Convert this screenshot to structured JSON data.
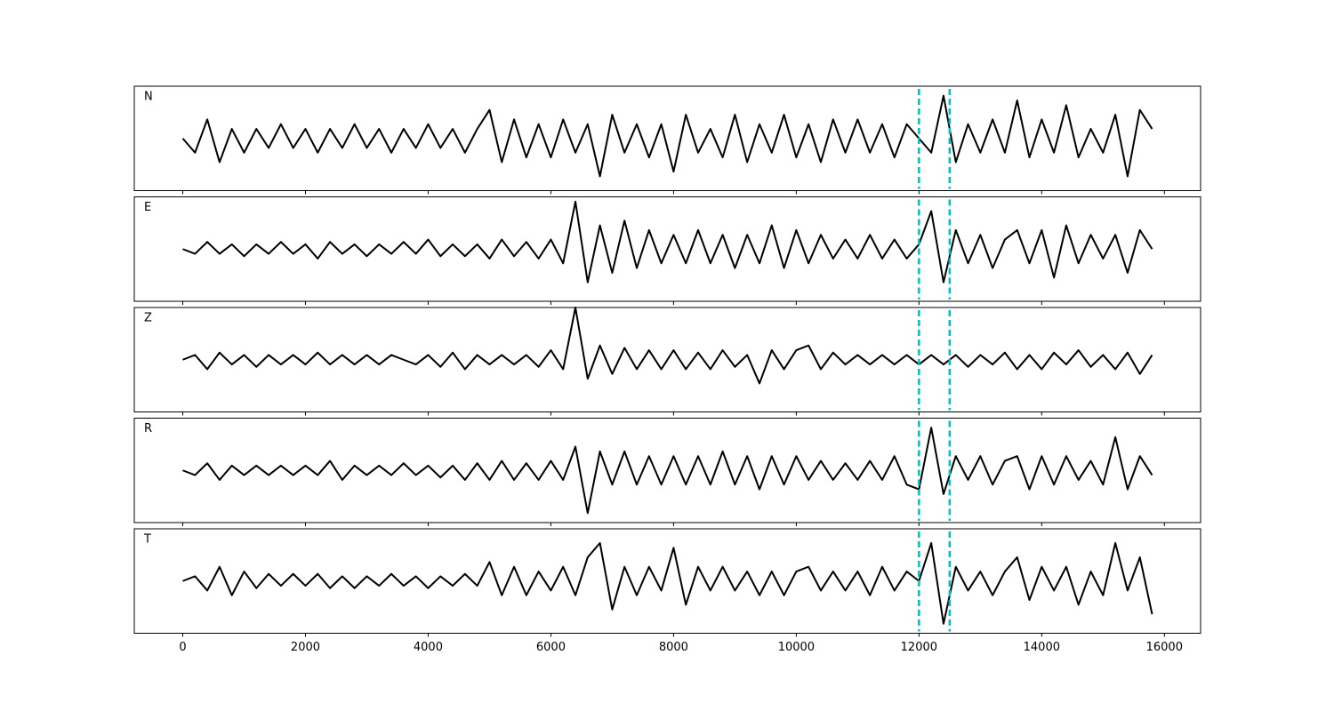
{
  "chart_data": {
    "type": "line",
    "subplots": true,
    "x": [
      0,
      200,
      400,
      600,
      800,
      1000,
      1200,
      1400,
      1600,
      1800,
      2000,
      2200,
      2400,
      2600,
      2800,
      3000,
      3200,
      3400,
      3600,
      3800,
      4000,
      4200,
      4400,
      4600,
      4800,
      5000,
      5200,
      5400,
      5600,
      5800,
      6000,
      6200,
      6400,
      6600,
      6800,
      7000,
      7200,
      7400,
      7600,
      7800,
      8000,
      8200,
      8400,
      8600,
      8800,
      9000,
      9200,
      9400,
      9600,
      9800,
      10000,
      10200,
      10400,
      10600,
      10800,
      11000,
      11200,
      11400,
      11600,
      11800,
      12000,
      12200,
      12400,
      12600,
      12800,
      13000,
      13200,
      13400,
      13600,
      13800,
      14000,
      14200,
      14400,
      14600,
      14800,
      15000,
      15200,
      15400,
      15600,
      15800
    ],
    "xlim": [
      -790,
      16590
    ],
    "xticks": [
      0,
      2000,
      4000,
      6000,
      8000,
      10000,
      12000,
      14000,
      16000
    ],
    "ylim": [
      -1.1,
      1.1
    ],
    "vlines": {
      "x": [
        12000,
        12500
      ],
      "color": "#00bfbf",
      "style": "dashed"
    },
    "series": [
      {
        "name": "N",
        "color": "#000000",
        "values": [
          0.0,
          -0.3,
          0.4,
          -0.5,
          0.2,
          -0.3,
          0.2,
          -0.2,
          0.3,
          -0.2,
          0.2,
          -0.3,
          0.2,
          -0.2,
          0.3,
          -0.2,
          0.2,
          -0.3,
          0.2,
          -0.2,
          0.3,
          -0.2,
          0.2,
          -0.3,
          0.2,
          0.6,
          -0.5,
          0.4,
          -0.4,
          0.3,
          -0.4,
          0.4,
          -0.3,
          0.3,
          -0.8,
          0.5,
          -0.3,
          0.3,
          -0.4,
          0.3,
          -0.7,
          0.5,
          -0.3,
          0.2,
          -0.4,
          0.5,
          -0.5,
          0.3,
          -0.3,
          0.5,
          -0.4,
          0.3,
          -0.5,
          0.4,
          -0.3,
          0.4,
          -0.3,
          0.3,
          -0.4,
          0.3,
          0.0,
          -0.3,
          0.9,
          -0.5,
          0.3,
          -0.3,
          0.4,
          -0.3,
          0.8,
          -0.4,
          0.4,
          -0.3,
          0.7,
          -0.4,
          0.2,
          -0.3,
          0.5,
          -0.8,
          0.6,
          0.2
        ]
      },
      {
        "name": "E",
        "color": "#000000",
        "values": [
          0.0,
          -0.1,
          0.15,
          -0.1,
          0.1,
          -0.15,
          0.1,
          -0.1,
          0.15,
          -0.1,
          0.1,
          -0.2,
          0.15,
          -0.1,
          0.1,
          -0.15,
          0.1,
          -0.1,
          0.15,
          -0.1,
          0.2,
          -0.15,
          0.1,
          -0.15,
          0.1,
          -0.2,
          0.2,
          -0.15,
          0.15,
          -0.2,
          0.2,
          -0.3,
          1.0,
          -0.7,
          0.5,
          -0.5,
          0.6,
          -0.4,
          0.4,
          -0.3,
          0.3,
          -0.3,
          0.4,
          -0.3,
          0.3,
          -0.4,
          0.3,
          -0.3,
          0.5,
          -0.4,
          0.4,
          -0.3,
          0.3,
          -0.2,
          0.2,
          -0.2,
          0.3,
          -0.2,
          0.2,
          -0.2,
          0.1,
          0.8,
          -0.7,
          0.4,
          -0.3,
          0.3,
          -0.4,
          0.2,
          0.4,
          -0.3,
          0.4,
          -0.6,
          0.5,
          -0.3,
          0.3,
          -0.2,
          0.3,
          -0.5,
          0.4,
          0.0
        ]
      },
      {
        "name": "Z",
        "color": "#000000",
        "values": [
          0.0,
          0.1,
          -0.2,
          0.15,
          -0.1,
          0.1,
          -0.15,
          0.1,
          -0.1,
          0.1,
          -0.1,
          0.15,
          -0.1,
          0.1,
          -0.1,
          0.1,
          -0.1,
          0.1,
          0.0,
          -0.1,
          0.1,
          -0.15,
          0.15,
          -0.2,
          0.1,
          -0.1,
          0.1,
          -0.1,
          0.1,
          -0.15,
          0.2,
          -0.2,
          1.1,
          -0.4,
          0.3,
          -0.3,
          0.25,
          -0.2,
          0.2,
          -0.2,
          0.2,
          -0.2,
          0.15,
          -0.2,
          0.2,
          -0.15,
          0.1,
          -0.5,
          0.2,
          -0.2,
          0.2,
          0.3,
          -0.2,
          0.15,
          -0.1,
          0.1,
          -0.1,
          0.1,
          -0.1,
          0.1,
          -0.1,
          0.1,
          -0.1,
          0.1,
          -0.15,
          0.1,
          -0.1,
          0.15,
          -0.2,
          0.1,
          -0.2,
          0.15,
          -0.1,
          0.2,
          -0.15,
          0.1,
          -0.2,
          0.15,
          -0.3,
          0.1
        ]
      },
      {
        "name": "R",
        "color": "#000000",
        "values": [
          0.0,
          -0.1,
          0.15,
          -0.2,
          0.1,
          -0.1,
          0.1,
          -0.1,
          0.1,
          -0.1,
          0.1,
          -0.1,
          0.2,
          -0.2,
          0.1,
          -0.1,
          0.1,
          -0.1,
          0.15,
          -0.1,
          0.1,
          -0.15,
          0.1,
          -0.2,
          0.15,
          -0.2,
          0.2,
          -0.2,
          0.15,
          -0.2,
          0.2,
          -0.2,
          0.5,
          -0.9,
          0.4,
          -0.3,
          0.4,
          -0.3,
          0.3,
          -0.3,
          0.3,
          -0.3,
          0.3,
          -0.3,
          0.4,
          -0.3,
          0.3,
          -0.4,
          0.3,
          -0.3,
          0.3,
          -0.2,
          0.2,
          -0.2,
          0.15,
          -0.2,
          0.2,
          -0.2,
          0.3,
          -0.3,
          -0.4,
          0.9,
          -0.5,
          0.3,
          -0.2,
          0.3,
          -0.3,
          0.2,
          0.3,
          -0.4,
          0.3,
          -0.3,
          0.3,
          -0.2,
          0.2,
          -0.3,
          0.7,
          -0.4,
          0.3,
          -0.1
        ]
      },
      {
        "name": "T",
        "color": "#000000",
        "values": [
          0.0,
          0.1,
          -0.2,
          0.3,
          -0.3,
          0.2,
          -0.15,
          0.15,
          -0.1,
          0.15,
          -0.1,
          0.15,
          -0.15,
          0.1,
          -0.15,
          0.1,
          -0.1,
          0.15,
          -0.1,
          0.1,
          -0.15,
          0.1,
          -0.1,
          0.15,
          -0.1,
          0.4,
          -0.3,
          0.3,
          -0.3,
          0.2,
          -0.2,
          0.3,
          -0.3,
          0.5,
          0.8,
          -0.6,
          0.3,
          -0.3,
          0.3,
          -0.2,
          0.7,
          -0.5,
          0.3,
          -0.2,
          0.3,
          -0.2,
          0.2,
          -0.3,
          0.2,
          -0.3,
          0.2,
          0.3,
          -0.2,
          0.2,
          -0.2,
          0.2,
          -0.3,
          0.3,
          -0.2,
          0.2,
          0.0,
          0.8,
          -0.9,
          0.3,
          -0.2,
          0.2,
          -0.3,
          0.2,
          0.5,
          -0.4,
          0.3,
          -0.2,
          0.3,
          -0.5,
          0.2,
          -0.3,
          0.8,
          -0.2,
          0.5,
          -0.7
        ]
      }
    ]
  }
}
